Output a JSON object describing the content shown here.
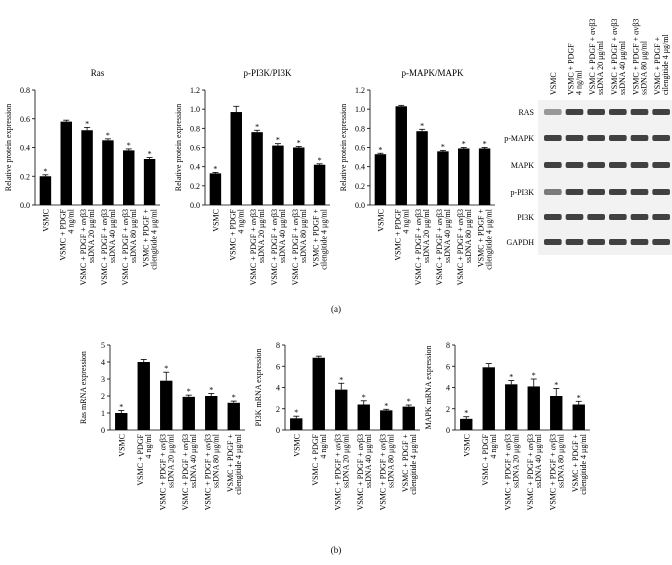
{
  "chart_data": [
    {
      "type": "bar",
      "title": "Ras",
      "y_label": "Relative protein expression",
      "color": "#000000",
      "categories": [
        [
          "VSMC"
        ],
        [
          "VSMC + PDGF",
          "4 ng/ml"
        ],
        [
          "VSMC + PDGF + αvβ3",
          "ssDNA 20 μg/ml"
        ],
        [
          "VSMC + PDGF + αvβ3",
          "ssDNA 40 μg/ml"
        ],
        [
          "VSMC + PDGF + αvβ3",
          "ssDNA 80 μg/ml"
        ],
        [
          "VSMC + PDGF +",
          "cilengitide 4 μg/ml"
        ]
      ],
      "values": [
        0.2,
        0.58,
        0.52,
        0.45,
        0.38,
        0.32
      ],
      "errors": [
        0.01,
        0.01,
        0.02,
        0.01,
        0.01,
        0.01
      ],
      "annotations": [
        "*",
        null,
        "*",
        "*",
        "*",
        "*"
      ],
      "ylim": [
        0,
        0.8
      ],
      "yticks": [
        {
          "value": 0,
          "label": "0.0"
        },
        0.2,
        0.4,
        0.6,
        0.8
      ]
    },
    {
      "type": "bar",
      "title": "p-PI3K/PI3K",
      "y_label": "Relative protein expression",
      "color": "#000000",
      "categories": [
        [
          "VSMC"
        ],
        [
          "VSMC + PDGF",
          "4 ng/ml"
        ],
        [
          "VSMC + PDGF + αvβ3",
          "ssDNA 20 μg/ml"
        ],
        [
          "VSMC + PDGF + αvβ3",
          "ssDNA 40 μg/ml"
        ],
        [
          "VSMC + PDGF + αvβ3",
          "ssDNA 80 μg/ml"
        ],
        [
          "VSMC + PDGF +",
          "cilengitide 4 μg/ml"
        ]
      ],
      "values": [
        0.33,
        0.97,
        0.76,
        0.62,
        0.6,
        0.42
      ],
      "errors": [
        0.01,
        0.06,
        0.02,
        0.02,
        0.01,
        0.01
      ],
      "annotations": [
        "*",
        null,
        "*",
        "*",
        "*",
        "*"
      ],
      "ylim": [
        0,
        1.2
      ],
      "yticks": [
        {
          "value": 0,
          "label": "0.0"
        },
        0.2,
        0.4,
        0.6,
        0.8,
        {
          "value": 1,
          "label": "1.0"
        },
        1.2
      ]
    },
    {
      "type": "bar",
      "title": "p-MAPK/MAPK",
      "y_label": "Relative protein expression",
      "color": "#000000",
      "categories": [
        [
          "VSMC"
        ],
        [
          "VSMC + PDGF",
          "4 ng/ml"
        ],
        [
          "VSMC + PDGF + αvβ3",
          "ssDNA 20 μg/ml"
        ],
        [
          "VSMC + PDGF + αvβ3",
          "ssDNA 40 μg/ml"
        ],
        [
          "VSMC + PDGF + αvβ3",
          "ssDNA 80 μg/ml"
        ],
        [
          "VSMC + PDGF +",
          "cilengitide 4 μg/ml"
        ]
      ],
      "values": [
        0.53,
        1.03,
        0.77,
        0.56,
        0.59,
        0.59
      ],
      "errors": [
        0.01,
        0.01,
        0.02,
        0.01,
        0.01,
        0.01
      ],
      "annotations": [
        "*",
        null,
        "*",
        "*",
        "*",
        "*"
      ],
      "ylim": [
        0,
        1.2
      ],
      "yticks": [
        {
          "value": 0,
          "label": "0.0"
        },
        0.2,
        0.4,
        0.6,
        0.8,
        {
          "value": 1,
          "label": "1.0"
        },
        1.2
      ]
    },
    {
      "type": "bar",
      "y_label": "Ras mRNA expression",
      "color": "#000000",
      "categories": [
        [
          "VSMC"
        ],
        [
          "VSMC + PDGF",
          "4 ng/ml"
        ],
        [
          "VSMC + PDGF + αvβ3",
          "ssDNA 20 μg/ml"
        ],
        [
          "VSMC + PDGF + αvβ3",
          "ssDNA 40 μg/ml"
        ],
        [
          "VSMC + PDGF + αvβ3",
          "ssDNA 80 μg/ml"
        ],
        [
          "VSMC + PDGF +",
          "cilengitide 4 μg/ml"
        ]
      ],
      "values": [
        1.0,
        4.0,
        2.9,
        1.95,
        2.0,
        1.6
      ],
      "errors": [
        0.15,
        0.15,
        0.5,
        0.1,
        0.15,
        0.1
      ],
      "annotations": [
        "*",
        null,
        "*",
        "*",
        "*",
        "*"
      ],
      "ylim": [
        0,
        5
      ],
      "yticks": [
        0,
        1,
        2,
        3,
        4,
        5
      ]
    },
    {
      "type": "bar",
      "y_label": "PI3K mRNA expression",
      "color": "#000000",
      "categories": [
        [
          "VSMC"
        ],
        [
          "VSMC + PDGF",
          "4 ng/ml"
        ],
        [
          "VSMC + PDGF + αvβ3",
          "ssDNA 20 μg/ml"
        ],
        [
          "VSMC + PDGF + αvβ3",
          "ssDNA 40 μg/ml"
        ],
        [
          "VSMC + PDGF + αvβ3",
          "ssDNA 80 μg/ml"
        ],
        [
          "VSMC + PDGF +",
          "cilengitide 4 μg/ml"
        ]
      ],
      "values": [
        1.1,
        6.8,
        3.8,
        2.4,
        1.85,
        2.2
      ],
      "errors": [
        0.2,
        0.15,
        0.6,
        0.35,
        0.1,
        0.15
      ],
      "annotations": [
        "*",
        null,
        "*",
        "*",
        "*",
        "*"
      ],
      "ylim": [
        0,
        8
      ],
      "yticks": [
        0,
        2,
        4,
        6,
        8
      ]
    },
    {
      "type": "bar",
      "y_label": "MAPK mRNA expression",
      "color": "#000000",
      "categories": [
        [
          "VSMC"
        ],
        [
          "VSMC + PDGF",
          "4 ng/ml"
        ],
        [
          "VSMC + PDGF + αvβ3",
          "ssDNA 20 μg/ml"
        ],
        [
          "VSMC + PDGF + αvβ3",
          "ssDNA 40 μg/ml"
        ],
        [
          "VSMC + PDGF + αvβ3",
          "ssDNA 80 μg/ml"
        ],
        [
          "VSMC + PDGF +",
          "cilengitide 4 μg/ml"
        ]
      ],
      "values": [
        1.05,
        5.9,
        4.3,
        4.1,
        3.2,
        2.4
      ],
      "errors": [
        0.2,
        0.35,
        0.35,
        0.7,
        0.7,
        0.3
      ],
      "annotations": [
        "*",
        null,
        "*",
        "*",
        "*",
        "*"
      ],
      "ylim": [
        0,
        8
      ],
      "yticks": [
        0,
        2,
        4,
        6,
        8
      ]
    }
  ],
  "blot": {
    "rows": [
      "RAS",
      "p-MAPK",
      "MAPK",
      "p-PI3K",
      "PI3K",
      "GAPDH"
    ]
  },
  "panel_labels": [
    "(a)",
    "(b)"
  ]
}
